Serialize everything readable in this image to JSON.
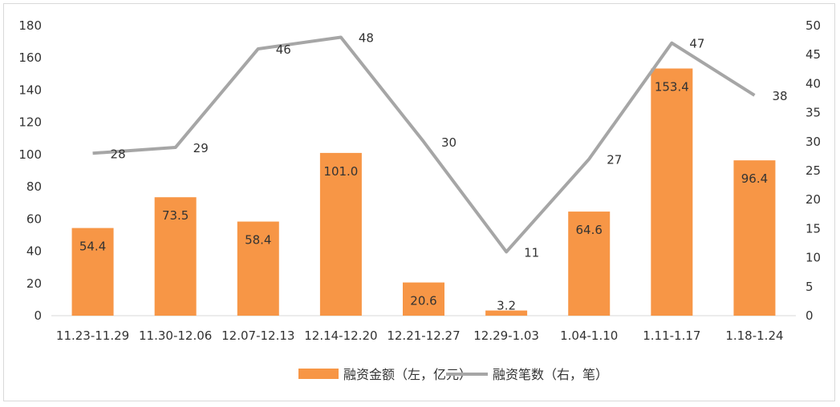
{
  "chart_data": {
    "type": "bar",
    "categories": [
      "11.23-11.29",
      "11.30-12.06",
      "12.07-12.13",
      "12.14-12.20",
      "12.21-12.27",
      "12.29-1.03",
      "1.04-1.10",
      "1.11-1.17",
      "1.18-1.24"
    ],
    "series": [
      {
        "name": "融资金额（左，亿元）",
        "type": "bar",
        "axis": "left",
        "color": "#f79646",
        "values": [
          54.4,
          73.5,
          58.4,
          101.0,
          20.6,
          3.2,
          64.6,
          153.4,
          96.4
        ],
        "labels": [
          "54.4",
          "73.5",
          "58.4",
          "101.0",
          "20.6",
          "3.2",
          "64.6",
          "153.4",
          "96.4"
        ]
      },
      {
        "name": "融资笔数（右，笔）",
        "type": "line",
        "axis": "right",
        "color": "#a6a6a6",
        "values": [
          28,
          29,
          46,
          48,
          30,
          11,
          27,
          47,
          38
        ],
        "labels": [
          "28",
          "29",
          "46",
          "48",
          "30",
          "11",
          "27",
          "47",
          "38"
        ]
      }
    ],
    "y_left": {
      "min": 0,
      "max": 180,
      "step": 20,
      "ticks": [
        "0",
        "20",
        "40",
        "60",
        "80",
        "100",
        "120",
        "140",
        "160",
        "180"
      ]
    },
    "y_right": {
      "min": 0,
      "max": 50,
      "step": 5,
      "ticks": [
        "0",
        "5",
        "10",
        "15",
        "20",
        "25",
        "30",
        "35",
        "40",
        "45",
        "50"
      ]
    },
    "grid": false,
    "legend_position": "bottom"
  }
}
